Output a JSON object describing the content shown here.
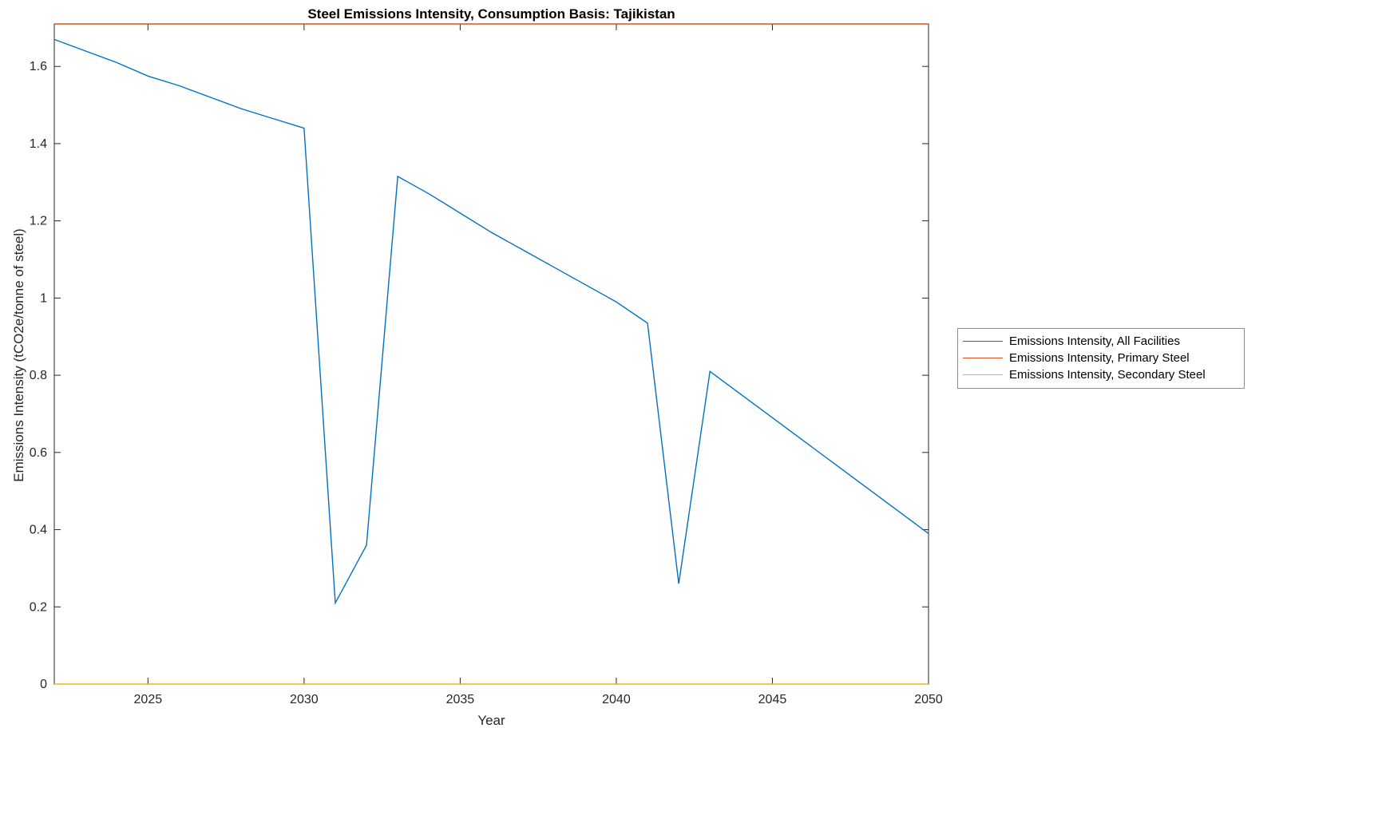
{
  "figure": {
    "background": "#ffffff",
    "axis_color": "#262626"
  },
  "chart_data": {
    "type": "line",
    "title": "Steel Emissions Intensity, Consumption Basis: Tajikistan",
    "xlabel": "Year",
    "ylabel": "Emissions Intensity (tCO2e/tonne of steel)",
    "xlim": [
      2022,
      2050
    ],
    "ylim": [
      0,
      1.71
    ],
    "xticks": [
      2025,
      2030,
      2035,
      2040,
      2045,
      2050
    ],
    "yticks": [
      0,
      0.2,
      0.4,
      0.6,
      0.8,
      1,
      1.2,
      1.4,
      1.6
    ],
    "grid": false,
    "legend_position": "right-outside",
    "x": [
      2022,
      2023,
      2024,
      2025,
      2026,
      2027,
      2028,
      2029,
      2030,
      2031,
      2032,
      2033,
      2034,
      2035,
      2036,
      2037,
      2038,
      2039,
      2040,
      2041,
      2042,
      2043,
      2044,
      2045,
      2046,
      2047,
      2048,
      2049,
      2050
    ],
    "series": [
      {
        "name": "Emissions Intensity, All Facilities",
        "color": "#0072BD",
        "values": [
          1.67,
          1.64,
          1.61,
          1.575,
          1.55,
          1.52,
          1.49,
          1.465,
          1.44,
          0.21,
          0.36,
          1.315,
          1.27,
          1.22,
          1.17,
          1.125,
          1.08,
          1.035,
          0.99,
          0.935,
          0.26,
          0.81,
          0.75,
          0.69,
          0.63,
          0.57,
          0.51,
          0.45,
          0.39
        ]
      },
      {
        "name": "Emissions Intensity, Primary Steel",
        "color": "#D95319",
        "values": [
          1.71,
          1.71,
          1.71,
          1.71,
          1.71,
          1.71,
          1.71,
          1.71,
          1.71,
          1.71,
          1.71,
          1.71,
          1.71,
          1.71,
          1.71,
          1.71,
          1.71,
          1.71,
          1.71,
          1.71,
          1.71,
          1.71,
          1.71,
          1.71,
          1.71,
          1.71,
          1.71,
          1.71,
          1.71
        ]
      },
      {
        "name": "Emissions Intensity, Secondary Steel",
        "color": "#EDB120",
        "values": [
          0,
          0,
          0,
          0,
          0,
          0,
          0,
          0,
          0,
          0,
          0,
          0,
          0,
          0,
          0,
          0,
          0,
          0,
          0,
          0,
          0,
          0,
          0,
          0,
          0,
          0,
          0,
          0,
          0
        ]
      }
    ]
  }
}
